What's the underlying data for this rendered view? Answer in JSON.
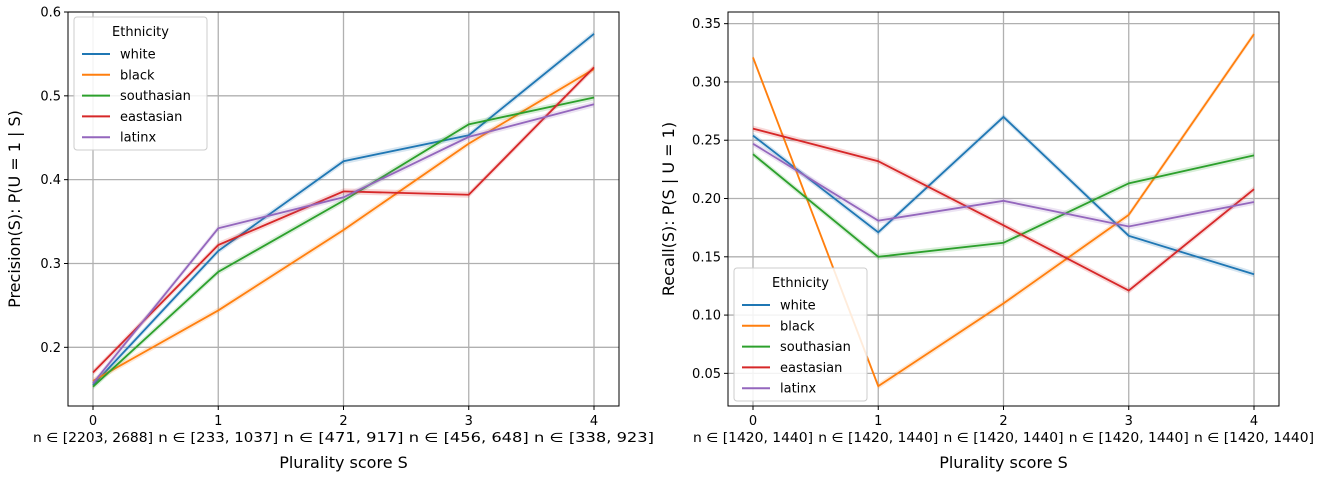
{
  "chart_data": [
    {
      "type": "line",
      "xlabel": "Plurality score S",
      "ylabel": "Precision(S): P(U = 1 | S)",
      "x": [
        0,
        1,
        2,
        3,
        4
      ],
      "x_tick_labels": [
        "0",
        "1",
        "2",
        "3",
        "4"
      ],
      "x_sublabels": [
        "n ∈ [2203, 2688]",
        "n ∈ [233, 1037]",
        "n ∈ [471, 917]",
        "n ∈ [456, 648]",
        "n ∈ [338, 923]"
      ],
      "ylim": [
        0.13,
        0.6
      ],
      "y_ticks": [
        0.2,
        0.3,
        0.4,
        0.5,
        0.6
      ],
      "y_tick_labels": [
        "0.2",
        "0.3",
        "0.4",
        "0.5",
        "0.6"
      ],
      "grid": true,
      "legend": {
        "title": "Ethnicity",
        "position": "top-left"
      },
      "series": [
        {
          "name": "white",
          "color": "#1f77b4",
          "values": [
            0.155,
            0.315,
            0.422,
            0.453,
            0.574
          ]
        },
        {
          "name": "black",
          "color": "#ff7f0e",
          "values": [
            0.16,
            0.244,
            0.34,
            0.443,
            0.532
          ]
        },
        {
          "name": "southasian",
          "color": "#2ca02c",
          "values": [
            0.153,
            0.29,
            0.375,
            0.466,
            0.498
          ]
        },
        {
          "name": "eastasian",
          "color": "#d62728",
          "values": [
            0.17,
            0.322,
            0.386,
            0.382,
            0.534
          ]
        },
        {
          "name": "latinx",
          "color": "#9467bd",
          "values": [
            0.157,
            0.342,
            0.379,
            0.451,
            0.49
          ]
        }
      ]
    },
    {
      "type": "line",
      "xlabel": "Plurality score S",
      "ylabel": "Recall(S): P(S | U = 1)",
      "x": [
        0,
        1,
        2,
        3,
        4
      ],
      "x_tick_labels": [
        "0",
        "1",
        "2",
        "3",
        "4"
      ],
      "x_sublabels": [
        "n ∈ [1420, 1440]",
        "n ∈ [1420, 1440]",
        "n ∈ [1420, 1440]",
        "n ∈ [1420, 1440]",
        "n ∈ [1420, 1440]"
      ],
      "ylim": [
        0.022,
        0.36
      ],
      "y_ticks": [
        0.05,
        0.1,
        0.15,
        0.2,
        0.25,
        0.3,
        0.35
      ],
      "y_tick_labels": [
        "0.05",
        "0.10",
        "0.15",
        "0.20",
        "0.25",
        "0.30",
        "0.35"
      ],
      "grid": true,
      "legend": {
        "title": "Ethnicity",
        "position": "bottom-left"
      },
      "series": [
        {
          "name": "white",
          "color": "#1f77b4",
          "values": [
            0.254,
            0.171,
            0.27,
            0.168,
            0.135
          ]
        },
        {
          "name": "black",
          "color": "#ff7f0e",
          "values": [
            0.321,
            0.039,
            0.11,
            0.186,
            0.341
          ]
        },
        {
          "name": "southasian",
          "color": "#2ca02c",
          "values": [
            0.238,
            0.15,
            0.162,
            0.213,
            0.237
          ]
        },
        {
          "name": "eastasian",
          "color": "#d62728",
          "values": [
            0.26,
            0.232,
            0.177,
            0.121,
            0.208
          ]
        },
        {
          "name": "latinx",
          "color": "#9467bd",
          "values": [
            0.247,
            0.181,
            0.198,
            0.176,
            0.197
          ]
        }
      ]
    }
  ]
}
